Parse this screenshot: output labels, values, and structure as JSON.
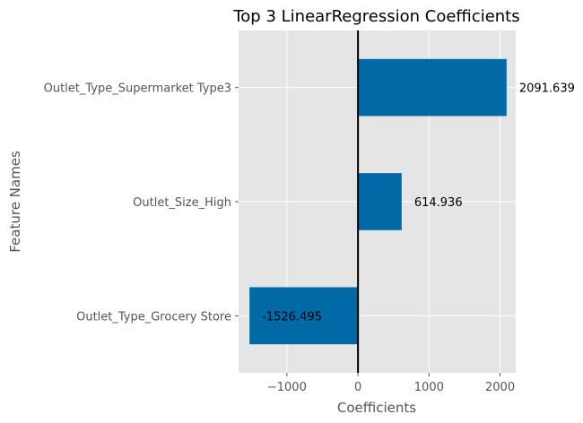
{
  "chart_data": {
    "type": "bar",
    "orientation": "horizontal",
    "title": "Top 3 LinearRegression Coefficients",
    "xlabel": "Coefficients",
    "ylabel": "Feature Names",
    "categories": [
      "Outlet_Type_Supermarket Type3",
      "Outlet_Size_High",
      "Outlet_Type_Grocery Store"
    ],
    "values": [
      2091.639,
      614.936,
      -1526.495
    ],
    "data_labels": [
      "2091.639",
      "614.936",
      "-1526.495"
    ],
    "xlim": [
      -1680,
      2220
    ],
    "xticks": [
      -1000,
      0,
      1000,
      2000
    ],
    "xtick_labels": [
      "−1000",
      "0",
      "1000",
      "2000"
    ],
    "grid": true,
    "colors": {
      "bar": "#0069a6",
      "plot_bg": "#e5e5e5",
      "grid": "#ffffff",
      "zero_line": "#000000"
    }
  }
}
